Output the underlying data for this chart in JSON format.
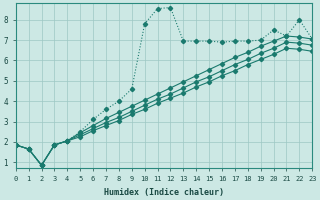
{
  "xlabel": "Humidex (Indice chaleur)",
  "ylabel": "",
  "bg_color": "#cce8e4",
  "grid_color": "#9dc8c4",
  "line_color": "#1a7a6e",
  "xlim": [
    0,
    23
  ],
  "ylim": [
    0.7,
    8.8
  ],
  "xticks": [
    0,
    1,
    2,
    3,
    4,
    5,
    6,
    7,
    8,
    9,
    10,
    11,
    12,
    13,
    14,
    15,
    16,
    17,
    18,
    19,
    20,
    21,
    22,
    23
  ],
  "yticks": [
    1,
    2,
    3,
    4,
    5,
    6,
    7,
    8
  ],
  "line_dotted": [
    1.85,
    1.65,
    0.85,
    1.85,
    2.05,
    2.5,
    3.1,
    3.6,
    4.0,
    4.6,
    7.8,
    8.55,
    8.6,
    6.95,
    6.95,
    6.95,
    6.9,
    6.95,
    6.95,
    7.0,
    7.5,
    7.2,
    8.0,
    7.05
  ],
  "line_a": [
    1.85,
    1.65,
    0.85,
    1.85,
    2.05,
    2.45,
    2.8,
    3.15,
    3.45,
    3.75,
    4.05,
    4.35,
    4.65,
    4.95,
    5.25,
    5.55,
    5.85,
    6.15,
    6.4,
    6.7,
    6.95,
    7.2,
    7.15,
    7.05
  ],
  "line_b": [
    1.85,
    1.65,
    0.85,
    1.85,
    2.05,
    2.35,
    2.65,
    2.95,
    3.2,
    3.5,
    3.8,
    4.1,
    4.35,
    4.65,
    4.95,
    5.2,
    5.5,
    5.8,
    6.05,
    6.35,
    6.6,
    6.9,
    6.85,
    6.75
  ],
  "line_c": [
    1.85,
    1.65,
    0.85,
    1.85,
    2.05,
    2.25,
    2.55,
    2.8,
    3.05,
    3.35,
    3.6,
    3.9,
    4.15,
    4.4,
    4.7,
    4.95,
    5.25,
    5.5,
    5.8,
    6.05,
    6.3,
    6.6,
    6.55,
    6.45
  ]
}
